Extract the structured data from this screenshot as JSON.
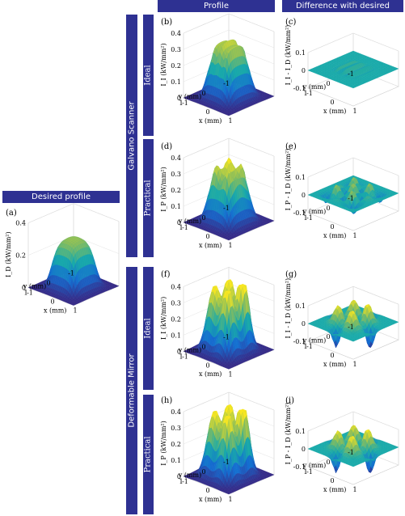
{
  "headers": {
    "desired": "Desired profile",
    "profile": "Profile",
    "difference": "Difference with desired"
  },
  "groups": {
    "galvano": "Galvano Scanner",
    "deformable": "Deformable Mirror"
  },
  "rows": {
    "ideal": "Ideal",
    "practical": "Practical"
  },
  "colors": {
    "header_bg": "#2e3192",
    "surface_low": "#3b2a8a",
    "surface_mid": "#21a8a0",
    "surface_high": "#f5e22a"
  },
  "panels": [
    {
      "id": "a",
      "label": "(a)",
      "zlabel": "I_D (kW/mm²)",
      "zticks": [
        "0",
        "0.2",
        "0.4"
      ],
      "type": "profile-plateau",
      "xticks": [
        "-1",
        "0",
        "1"
      ],
      "yticks": [
        "1",
        "0",
        "-1"
      ],
      "xlabel": "x (mm)",
      "ylabel": "y (mm)"
    },
    {
      "id": "b",
      "label": "(b)",
      "zlabel": "I_I (kW/mm²)",
      "zticks": [
        "0",
        "0.1",
        "0.2",
        "0.3",
        "0.4"
      ],
      "type": "profile-ridged",
      "xticks": [
        "-1",
        "0",
        "1"
      ],
      "yticks": [
        "1",
        "0",
        "-1"
      ],
      "xlabel": "x (mm)",
      "ylabel": "y (mm)"
    },
    {
      "id": "c",
      "label": "(c)",
      "zlabel": "I_I - I_D (kW/mm²)",
      "zticks": [
        "-0.1",
        "0",
        "0.1"
      ],
      "type": "diff-small",
      "xticks": [
        "-1",
        "0",
        "1"
      ],
      "yticks": [
        "1",
        "0",
        "-1"
      ],
      "xlabel": "x (mm)",
      "ylabel": "y (mm)"
    },
    {
      "id": "d",
      "label": "(d)",
      "zlabel": "I_P (kW/mm²)",
      "zticks": [
        "0",
        "0.1",
        "0.2",
        "0.3",
        "0.4"
      ],
      "type": "profile-rough",
      "xticks": [
        "-1",
        "0",
        "1"
      ],
      "yticks": [
        "1",
        "0",
        "-1"
      ],
      "xlabel": "x (mm)",
      "ylabel": "y (mm)"
    },
    {
      "id": "e",
      "label": "(e)",
      "zlabel": "I_P - I_D (kW/mm²)",
      "zticks": [
        "-0.1",
        "0",
        "0.1"
      ],
      "type": "diff-medium",
      "xticks": [
        "-1",
        "0",
        "1"
      ],
      "yticks": [
        "1",
        "0",
        "-1"
      ],
      "xlabel": "x (mm)",
      "ylabel": "y (mm)"
    },
    {
      "id": "f",
      "label": "(f)",
      "zlabel": "I_I (kW/mm²)",
      "zticks": [
        "0",
        "0.1",
        "0.2",
        "0.3",
        "0.4"
      ],
      "type": "profile-peaks",
      "xticks": [
        "-1",
        "0",
        "1"
      ],
      "yticks": [
        "1",
        "0",
        "-1"
      ],
      "xlabel": "x (mm)",
      "ylabel": "y (mm)"
    },
    {
      "id": "g",
      "label": "(g)",
      "zlabel": "I_I - I_D (kW/mm²)",
      "zticks": [
        "-0.1",
        "0",
        "0.1"
      ],
      "type": "diff-large",
      "xticks": [
        "-1",
        "0",
        "1"
      ],
      "yticks": [
        "1",
        "0",
        "-1"
      ],
      "xlabel": "x (mm)",
      "ylabel": "y (mm)"
    },
    {
      "id": "h",
      "label": "(h)",
      "zlabel": "I_P (kW/mm²)",
      "zticks": [
        "0",
        "0.1",
        "0.2",
        "0.3",
        "0.4"
      ],
      "type": "profile-peaks",
      "xticks": [
        "-1",
        "0",
        "1"
      ],
      "yticks": [
        "1",
        "0",
        "-1"
      ],
      "xlabel": "x (mm)",
      "ylabel": "y (mm)"
    },
    {
      "id": "i",
      "label": "(i)",
      "zlabel": "I_P - I_D (kW/mm²)",
      "zticks": [
        "-0.1",
        "0",
        "0.1"
      ],
      "type": "diff-large",
      "xticks": [
        "-1",
        "0",
        "1"
      ],
      "yticks": [
        "1",
        "0",
        "-1"
      ],
      "xlabel": "x (mm)",
      "ylabel": "y (mm)"
    }
  ]
}
